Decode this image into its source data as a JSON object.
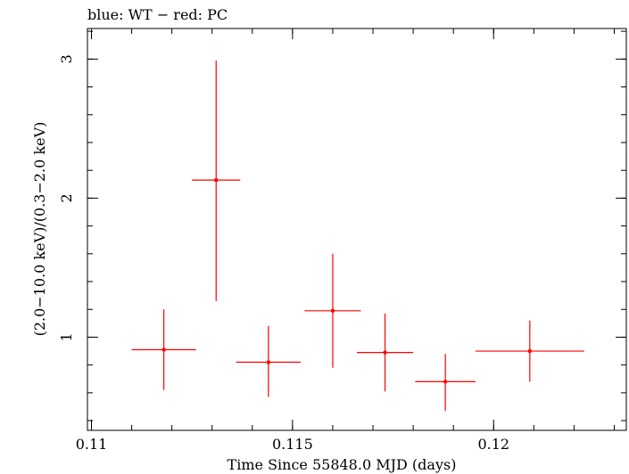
{
  "chart_data": {
    "type": "scatter",
    "title": "blue: WT − red: PC",
    "xlabel": "Time Since 55848.0 MJD (days)",
    "ylabel": "(2.0−10.0 keV)/(0.3−2.0 keV)",
    "xlim": [
      0.1099,
      0.1233
    ],
    "ylim": [
      0.33,
      3.22
    ],
    "x_ticks": [
      {
        "value": 0.11,
        "label": "0.11"
      },
      {
        "value": 0.115,
        "label": "0.115"
      },
      {
        "value": 0.12,
        "label": "0.12"
      }
    ],
    "y_ticks": [
      {
        "value": 1,
        "label": "1"
      },
      {
        "value": 2,
        "label": "2"
      },
      {
        "value": 3,
        "label": "3"
      }
    ],
    "x_minor_step": 0.001,
    "y_minor_step": 0.2,
    "grid": false,
    "legend": "none",
    "series": [
      {
        "name": "PC",
        "color": "#ff0000",
        "points": [
          {
            "x": 0.1118,
            "y": 0.91,
            "xerr": 0.0008,
            "ylo": 0.62,
            "yhi": 1.2
          },
          {
            "x": 0.1131,
            "y": 2.13,
            "xerr": 0.0006,
            "ylo": 1.26,
            "yhi": 2.99
          },
          {
            "x": 0.1144,
            "y": 0.82,
            "xerr": 0.0008,
            "ylo": 0.57,
            "yhi": 1.08
          },
          {
            "x": 0.116,
            "y": 1.19,
            "xerr": 0.0007,
            "ylo": 0.78,
            "yhi": 1.6
          },
          {
            "x": 0.1173,
            "y": 0.89,
            "xerr": 0.0007,
            "ylo": 0.61,
            "yhi": 1.17
          },
          {
            "x": 0.1188,
            "y": 0.68,
            "xerr": 0.00075,
            "ylo": 0.47,
            "yhi": 0.88
          },
          {
            "x": 0.1209,
            "y": 0.9,
            "xerr": 0.00135,
            "ylo": 0.68,
            "yhi": 1.12
          }
        ]
      }
    ]
  }
}
